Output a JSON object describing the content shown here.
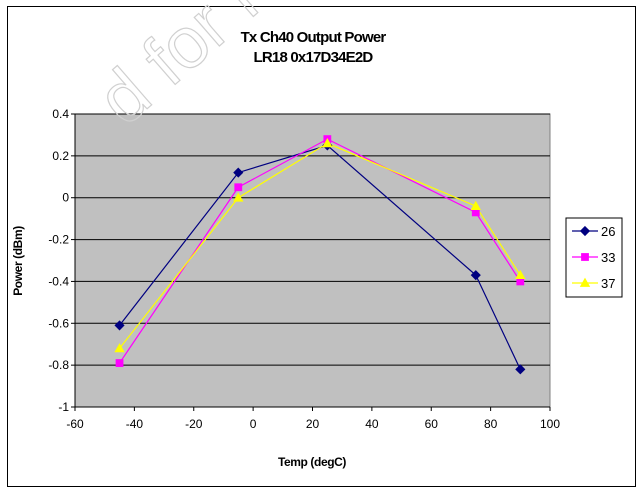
{
  "chart_data": {
    "type": "line",
    "title_lines": [
      "Tx Ch40 Output Power",
      "LR18 0x17D34E2D"
    ],
    "xlabel": "Temp (degC)",
    "ylabel": "Power (dBm)",
    "xlim": [
      -60,
      100
    ],
    "ylim": [
      -1,
      0.4
    ],
    "xticks": [
      -60,
      -40,
      -20,
      0,
      20,
      40,
      60,
      80,
      100
    ],
    "yticks": [
      -1,
      -0.8,
      -0.6,
      -0.4,
      -0.2,
      0,
      0.2,
      0.4
    ],
    "xtick_labels": [
      "-60",
      "-40",
      "-20",
      "0",
      "20",
      "40",
      "60",
      "80",
      "100"
    ],
    "ytick_labels": [
      "-1",
      "-0.8",
      "-0.6",
      "-0.4",
      "-0.2",
      "0",
      "0.2",
      "0.4"
    ],
    "grid": "horizontal",
    "legend_position": "right",
    "plot_background": "#c0c0c0",
    "series": [
      {
        "name": "26",
        "color": "#000080",
        "marker": "diamond",
        "x": [
          -45,
          -5,
          25,
          75,
          90
        ],
        "y": [
          -0.61,
          0.12,
          0.25,
          -0.37,
          -0.82
        ]
      },
      {
        "name": "33",
        "color": "#ff00ff",
        "marker": "square",
        "x": [
          -45,
          -5,
          25,
          75,
          90
        ],
        "y": [
          -0.79,
          0.05,
          0.28,
          -0.07,
          -0.4
        ]
      },
      {
        "name": "37",
        "color": "#ffff00",
        "marker": "triangle",
        "x": [
          -45,
          -5,
          25,
          75,
          90
        ],
        "y": [
          -0.72,
          0.0,
          0.26,
          -0.04,
          -0.37
        ]
      }
    ]
  },
  "watermark": {
    "text": "d for New De",
    "color": "#d0d0d0"
  }
}
